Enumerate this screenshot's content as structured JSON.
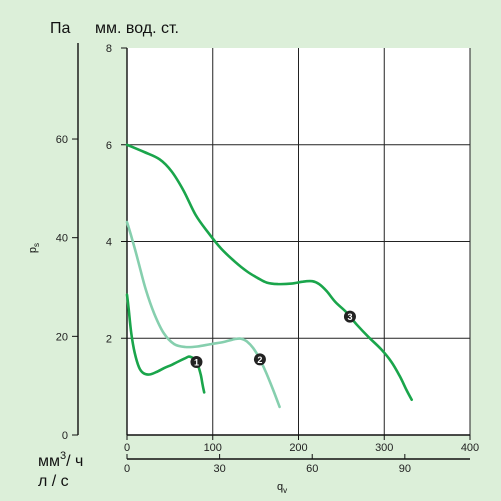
{
  "chart_data": {
    "type": "line",
    "primary_unit": "Па",
    "secondary_unit": "мм. вод. ст.",
    "ylabel_main": "p",
    "ylabel_sub": "s",
    "xlabel_main": "q",
    "xlabel_sub": "v",
    "x_unit_primary_base": "мм",
    "x_unit_primary_sup": "3",
    "x_unit_primary_suffix": "/ ч",
    "x_unit_secondary": "л / с",
    "ylim_mmwc": [
      0,
      8
    ],
    "xlim_m3h": [
      0,
      400
    ],
    "y_ticks_pa": [
      "0",
      "20",
      "40",
      "60"
    ],
    "y_ticks_mmwc": [
      "2",
      "4",
      "6",
      "8"
    ],
    "x_ticks_m3h": [
      "0",
      "100",
      "200",
      "300",
      "400"
    ],
    "x_ticks_ls": [
      "0",
      "30",
      "60",
      "90"
    ],
    "grid": true,
    "colors": {
      "background": "#dcefd9",
      "dark_green": "#1aa54b",
      "light_green": "#86cfae",
      "marker": "#222222"
    },
    "series": [
      {
        "marker": "1",
        "color": "dark",
        "points": [
          [
            0,
            2.9
          ],
          [
            2,
            2.6
          ],
          [
            5,
            2.1
          ],
          [
            9,
            1.7
          ],
          [
            14,
            1.4
          ],
          [
            19,
            1.28
          ],
          [
            26,
            1.25
          ],
          [
            34,
            1.3
          ],
          [
            43,
            1.38
          ],
          [
            52,
            1.45
          ],
          [
            60,
            1.52
          ],
          [
            67,
            1.58
          ],
          [
            72,
            1.62
          ],
          [
            76,
            1.6
          ],
          [
            80,
            1.55
          ],
          [
            83,
            1.43
          ],
          [
            86,
            1.25
          ],
          [
            88,
            1.05
          ],
          [
            90,
            0.88
          ]
        ],
        "marker_x": 81
      },
      {
        "marker": "2",
        "color": "light",
        "points": [
          [
            0,
            4.4
          ],
          [
            6,
            4.05
          ],
          [
            13,
            3.6
          ],
          [
            22,
            3.0
          ],
          [
            32,
            2.5
          ],
          [
            43,
            2.1
          ],
          [
            55,
            1.88
          ],
          [
            68,
            1.82
          ],
          [
            82,
            1.83
          ],
          [
            98,
            1.88
          ],
          [
            112,
            1.92
          ],
          [
            125,
            1.98
          ],
          [
            133,
            1.99
          ],
          [
            140,
            1.93
          ],
          [
            147,
            1.8
          ],
          [
            154,
            1.6
          ],
          [
            162,
            1.3
          ],
          [
            170,
            0.95
          ],
          [
            178,
            0.58
          ]
        ],
        "marker_x": 155
      },
      {
        "marker": "3",
        "color": "dark",
        "points": [
          [
            0,
            6.0
          ],
          [
            20,
            5.85
          ],
          [
            38,
            5.7
          ],
          [
            52,
            5.45
          ],
          [
            66,
            5.05
          ],
          [
            80,
            4.55
          ],
          [
            94,
            4.2
          ],
          [
            110,
            3.85
          ],
          [
            126,
            3.58
          ],
          [
            140,
            3.38
          ],
          [
            152,
            3.25
          ],
          [
            163,
            3.15
          ],
          [
            176,
            3.12
          ],
          [
            192,
            3.13
          ],
          [
            205,
            3.17
          ],
          [
            216,
            3.18
          ],
          [
            224,
            3.12
          ],
          [
            233,
            2.97
          ],
          [
            243,
            2.75
          ],
          [
            255,
            2.55
          ],
          [
            268,
            2.28
          ],
          [
            282,
            2.02
          ],
          [
            296,
            1.78
          ],
          [
            308,
            1.52
          ],
          [
            318,
            1.22
          ],
          [
            326,
            0.93
          ],
          [
            332,
            0.73
          ]
        ],
        "marker_x": 260
      }
    ]
  }
}
